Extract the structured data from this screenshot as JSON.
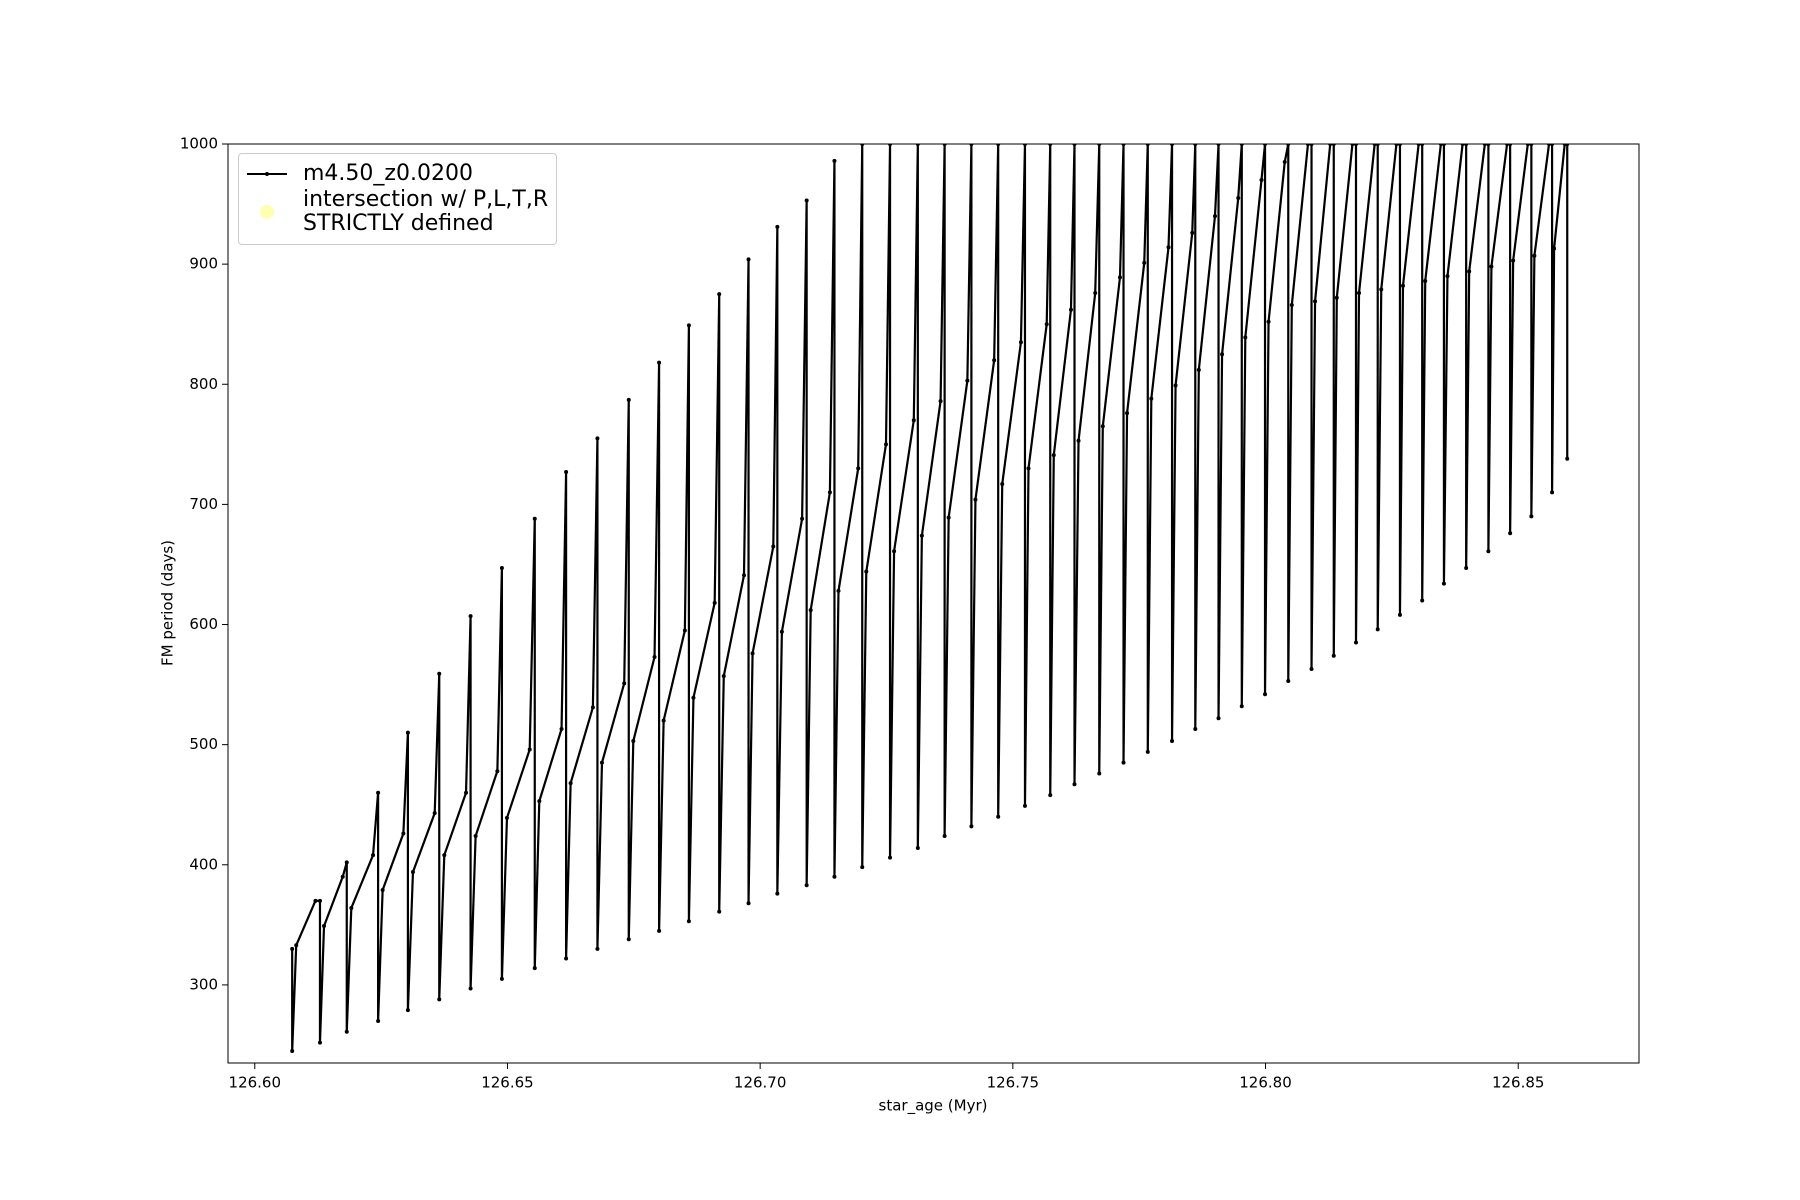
{
  "chart_data": {
    "type": "line",
    "xlabel": "star_age (Myr)",
    "ylabel": "FM period (days)",
    "xlim": [
      126.5947,
      126.8739
    ],
    "ylim": [
      235,
      1000
    ],
    "xticks": [
      {
        "value": 126.6,
        "label": "126.60"
      },
      {
        "value": 126.65,
        "label": "126.65"
      },
      {
        "value": 126.7,
        "label": "126.70"
      },
      {
        "value": 126.75,
        "label": "126.75"
      },
      {
        "value": 126.8,
        "label": "126.80"
      },
      {
        "value": 126.85,
        "label": "126.85"
      }
    ],
    "yticks": [
      300,
      400,
      500,
      600,
      700,
      800,
      900,
      1000
    ],
    "grid": false,
    "legend": "upper left",
    "series": [
      {
        "name": "m4.50_z0.0200",
        "type": "line",
        "color": "#000000",
        "x": [
          126.6074,
          126.6074,
          126.6082,
          126.612,
          126.6129,
          126.6129,
          126.6137,
          126.6174,
          126.6182,
          126.6182,
          126.6191,
          126.6234,
          126.6244,
          126.6244,
          126.6253,
          126.6294,
          126.6303,
          126.6303,
          126.6313,
          126.6356,
          126.6365,
          126.6365,
          126.6375,
          126.6418,
          126.6427,
          126.6427,
          126.6437,
          126.648,
          126.6489,
          126.6489,
          126.6499,
          126.6544,
          126.6554,
          126.6554,
          126.6563,
          126.6607,
          126.6616,
          126.6616,
          126.6625,
          126.6669,
          126.6678,
          126.6678,
          126.6687,
          126.6731,
          126.674,
          126.674,
          126.6749,
          126.6791,
          126.68,
          126.68,
          126.6809,
          126.6851,
          126.6859,
          126.6859,
          126.6868,
          126.691,
          126.6919,
          126.6919,
          126.6928,
          126.6968,
          126.6977,
          126.6977,
          126.6985,
          126.7026,
          126.7034,
          126.7034,
          126.7043,
          126.7083,
          126.7092,
          126.7092,
          126.71,
          126.7138,
          126.7147,
          126.7147,
          126.7155,
          126.7194,
          126.7202,
          126.7202,
          126.721,
          126.7249,
          126.7257,
          126.7257,
          126.7265,
          126.7304,
          126.7312,
          126.7312,
          126.732,
          126.7357,
          126.7365,
          126.7365,
          126.7373,
          126.741,
          126.7418,
          126.7418,
          126.7426,
          126.7463,
          126.7471,
          126.7471,
          126.7479,
          126.7516,
          126.7524,
          126.7524,
          126.7531,
          126.7567,
          126.7574,
          126.7574,
          126.7581,
          126.7615,
          126.7622,
          126.7622,
          126.763,
          126.7663,
          126.7671,
          126.7671,
          126.7678,
          126.7712,
          126.7719,
          126.7719,
          126.7726,
          126.776,
          126.7767,
          126.7767,
          126.7774,
          126.7808,
          126.7815,
          126.7815,
          126.7822,
          126.7855,
          126.7861,
          126.7861,
          126.7868,
          126.79,
          126.7907,
          126.7907,
          126.7914,
          126.7946,
          126.7953,
          126.7953,
          126.796,
          126.7992,
          126.7999,
          126.7999,
          126.8006,
          126.8038,
          126.8045,
          126.8045,
          126.8052,
          126.8084,
          126.8091,
          126.8091,
          126.8098,
          126.8128,
          126.8135,
          126.8135,
          126.8141,
          126.8172,
          126.8179,
          126.8179,
          126.8185,
          126.8216,
          126.8222,
          126.8222,
          126.8229,
          126.8259,
          126.8266,
          126.8266,
          126.8272,
          126.8303,
          126.831,
          126.831,
          126.8316,
          126.8347,
          126.8353,
          126.8353,
          126.836,
          126.839,
          126.8397,
          126.8397,
          126.8403,
          126.8434,
          126.8441,
          126.8441,
          126.8447,
          126.8478,
          126.8484,
          126.8484,
          126.849,
          126.8519,
          126.8526,
          126.8526,
          126.8532,
          126.8561,
          126.8567,
          126.8567,
          126.8571,
          126.8592,
          126.8597,
          126.8597
        ],
        "values": [
          330,
          245,
          333,
          370,
          370,
          252,
          349,
          390,
          402,
          261,
          364,
          408,
          460,
          270,
          379,
          426,
          510,
          279,
          394,
          443,
          559,
          288,
          408,
          460,
          607,
          297,
          424,
          478,
          647,
          305,
          439,
          496,
          688,
          314,
          453,
          513,
          727,
          322,
          468,
          531,
          755,
          330,
          485,
          551,
          787,
          338,
          503,
          573,
          818,
          345,
          520,
          595,
          849,
          353,
          539,
          618,
          875,
          361,
          557,
          641,
          904,
          368,
          576,
          665,
          931,
          376,
          594,
          688,
          953,
          383,
          612,
          710,
          986,
          390,
          628,
          730,
          1000,
          398,
          644,
          750,
          1000,
          406,
          661,
          770,
          1000,
          414,
          674,
          786,
          1000,
          424,
          689,
          803,
          1000,
          432,
          704,
          820,
          1000,
          440,
          717,
          835,
          1000,
          449,
          730,
          850,
          1000,
          458,
          741,
          862,
          1000,
          467,
          753,
          876,
          1000,
          476,
          765,
          889,
          1000,
          485,
          776,
          901,
          1000,
          494,
          788,
          914,
          1000,
          503,
          799,
          926,
          1000,
          513,
          812,
          940,
          1000,
          522,
          825,
          955,
          1000,
          532,
          839,
          970,
          1000,
          542,
          852,
          985,
          1000,
          553,
          866,
          1000,
          1000,
          563,
          869,
          1000,
          1000,
          574,
          872,
          1000,
          1000,
          585,
          876,
          1000,
          1000,
          596,
          879,
          1000,
          1000,
          608,
          882,
          1000,
          1000,
          620,
          886,
          1000,
          1000,
          634,
          890,
          1000,
          1000,
          647,
          894,
          1000,
          1000,
          661,
          898,
          1000,
          1000,
          676,
          903,
          1000,
          1000,
          690,
          907,
          1000,
          1000,
          710,
          913,
          1000,
          1000,
          738
        ]
      },
      {
        "name": "intersection w/ P,L,T,R\nSTRICTLY defined",
        "type": "scatter",
        "color": "#ffffb2",
        "x": [],
        "values": []
      }
    ]
  }
}
